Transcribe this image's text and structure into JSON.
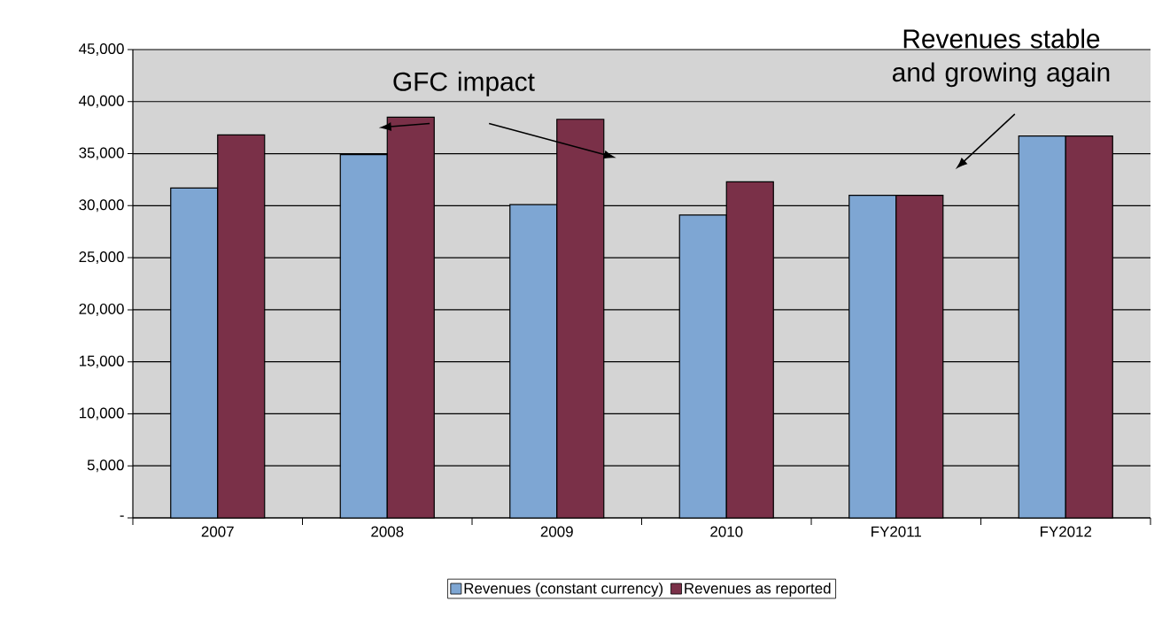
{
  "chart_data": {
    "type": "bar",
    "categories": [
      "2007",
      "2008",
      "2009",
      "2010",
      "FY2011",
      "FY2012"
    ],
    "series": [
      {
        "name": "Revenues (constant currency)",
        "color": "#7ea6d3",
        "values": [
          31700,
          34900,
          30100,
          29100,
          31000,
          36700
        ]
      },
      {
        "name": "Revenues as reported",
        "color": "#7a3048",
        "values": [
          36800,
          38500,
          38300,
          32300,
          31000,
          36700
        ]
      }
    ],
    "ylim": [
      0,
      45000
    ],
    "yticks": [
      {
        "value": 0,
        "label": "-"
      },
      {
        "value": 5000,
        "label": "5,000"
      },
      {
        "value": 10000,
        "label": "10,000"
      },
      {
        "value": 15000,
        "label": "15,000"
      },
      {
        "value": 20000,
        "label": "20,000"
      },
      {
        "value": 25000,
        "label": "25,000"
      },
      {
        "value": 30000,
        "label": "30,000"
      },
      {
        "value": 35000,
        "label": "35,000"
      },
      {
        "value": 40000,
        "label": "40,000"
      },
      {
        "value": 45000,
        "label": "45,000"
      }
    ],
    "grid": "y",
    "legend": "bottom",
    "annotations": [
      "GFC impact",
      "Revenues stable and growing again"
    ]
  }
}
